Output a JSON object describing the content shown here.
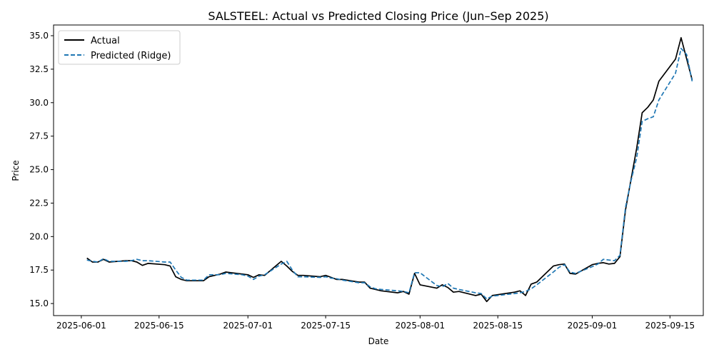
{
  "chart_data": {
    "type": "line",
    "title": "SALSTEEL: Actual vs Predicted Closing Price (Jun–Sep 2025)",
    "xlabel": "Date",
    "ylabel": "Price",
    "x_ticks": [
      "2025-06-01",
      "2025-06-15",
      "2025-07-01",
      "2025-07-15",
      "2025-08-01",
      "2025-08-15",
      "2025-09-01",
      "2025-09-15"
    ],
    "y_ticks": [
      "15.0",
      "17.5",
      "20.0",
      "22.5",
      "25.0",
      "27.5",
      "30.0",
      "32.5",
      "35.0"
    ],
    "xlim": [
      "2025-05-27",
      "2025-09-21"
    ],
    "ylim": [
      14.1,
      35.8
    ],
    "grid": false,
    "legend_position": "top-left",
    "series": [
      {
        "name": "Actual",
        "color": "#000000",
        "style": "solid",
        "points": [
          [
            "2025-06-02",
            18.4
          ],
          [
            "2025-06-03",
            18.1
          ],
          [
            "2025-06-04",
            18.1
          ],
          [
            "2025-06-05",
            18.3
          ],
          [
            "2025-06-06",
            18.1
          ],
          [
            "2025-06-09",
            18.2
          ],
          [
            "2025-06-10",
            18.2
          ],
          [
            "2025-06-11",
            18.1
          ],
          [
            "2025-06-12",
            17.85
          ],
          [
            "2025-06-13",
            18.0
          ],
          [
            "2025-06-16",
            17.9
          ],
          [
            "2025-06-17",
            17.8
          ],
          [
            "2025-06-18",
            17.0
          ],
          [
            "2025-06-19",
            16.8
          ],
          [
            "2025-06-20",
            16.7
          ],
          [
            "2025-06-23",
            16.7
          ],
          [
            "2025-06-24",
            17.0
          ],
          [
            "2025-06-25",
            17.1
          ],
          [
            "2025-06-26",
            17.2
          ],
          [
            "2025-06-27",
            17.35
          ],
          [
            "2025-06-30",
            17.2
          ],
          [
            "2025-07-01",
            17.15
          ],
          [
            "2025-07-02",
            16.95
          ],
          [
            "2025-07-03",
            17.15
          ],
          [
            "2025-07-04",
            17.1
          ],
          [
            "2025-07-07",
            18.15
          ],
          [
            "2025-07-08",
            17.8
          ],
          [
            "2025-07-09",
            17.4
          ],
          [
            "2025-07-10",
            17.1
          ],
          [
            "2025-07-11",
            17.1
          ],
          [
            "2025-07-14",
            17.0
          ],
          [
            "2025-07-15",
            17.1
          ],
          [
            "2025-07-16",
            16.95
          ],
          [
            "2025-07-17",
            16.8
          ],
          [
            "2025-07-18",
            16.8
          ],
          [
            "2025-07-21",
            16.6
          ],
          [
            "2025-07-22",
            16.6
          ],
          [
            "2025-07-23",
            16.15
          ],
          [
            "2025-07-24",
            16.05
          ],
          [
            "2025-07-25",
            15.95
          ],
          [
            "2025-07-28",
            15.8
          ],
          [
            "2025-07-29",
            15.9
          ],
          [
            "2025-07-30",
            15.7
          ],
          [
            "2025-07-31",
            17.25
          ],
          [
            "2025-08-01",
            16.4
          ],
          [
            "2025-08-04",
            16.15
          ],
          [
            "2025-08-05",
            16.4
          ],
          [
            "2025-08-06",
            16.2
          ],
          [
            "2025-08-07",
            15.85
          ],
          [
            "2025-08-08",
            15.9
          ],
          [
            "2025-08-11",
            15.6
          ],
          [
            "2025-08-12",
            15.7
          ],
          [
            "2025-08-13",
            15.15
          ],
          [
            "2025-08-14",
            15.6
          ],
          [
            "2025-08-18",
            15.85
          ],
          [
            "2025-08-19",
            15.95
          ],
          [
            "2025-08-20",
            15.6
          ],
          [
            "2025-08-21",
            16.45
          ],
          [
            "2025-08-22",
            16.6
          ],
          [
            "2025-08-25",
            17.8
          ],
          [
            "2025-08-26",
            17.9
          ],
          [
            "2025-08-27",
            17.95
          ],
          [
            "2025-08-28",
            17.25
          ],
          [
            "2025-08-29",
            17.2
          ],
          [
            "2025-09-01",
            17.9
          ],
          [
            "2025-09-02",
            18.0
          ],
          [
            "2025-09-03",
            18.05
          ],
          [
            "2025-09-04",
            17.95
          ],
          [
            "2025-09-05",
            18.0
          ],
          [
            "2025-09-06",
            18.5
          ],
          [
            "2025-09-07",
            22.0
          ],
          [
            "2025-09-08",
            24.3
          ],
          [
            "2025-09-09",
            26.6
          ],
          [
            "2025-09-10",
            29.25
          ],
          [
            "2025-09-11",
            29.65
          ],
          [
            "2025-09-12",
            30.2
          ],
          [
            "2025-09-13",
            31.6
          ],
          [
            "2025-09-16",
            33.25
          ],
          [
            "2025-09-17",
            34.85
          ],
          [
            "2025-09-19",
            31.7
          ]
        ]
      },
      {
        "name": "Predicted (Ridge)",
        "color": "#1f77b4",
        "style": "dashed",
        "points": [
          [
            "2025-06-02",
            18.25
          ],
          [
            "2025-06-03",
            18.15
          ],
          [
            "2025-06-04",
            18.1
          ],
          [
            "2025-06-05",
            18.35
          ],
          [
            "2025-06-06",
            18.15
          ],
          [
            "2025-06-09",
            18.15
          ],
          [
            "2025-06-10",
            18.2
          ],
          [
            "2025-06-11",
            18.3
          ],
          [
            "2025-06-12",
            18.2
          ],
          [
            "2025-06-13",
            18.2
          ],
          [
            "2025-06-16",
            18.1
          ],
          [
            "2025-06-17",
            18.1
          ],
          [
            "2025-06-18",
            17.5
          ],
          [
            "2025-06-19",
            16.95
          ],
          [
            "2025-06-20",
            16.75
          ],
          [
            "2025-06-23",
            16.75
          ],
          [
            "2025-06-24",
            17.15
          ],
          [
            "2025-06-25",
            17.15
          ],
          [
            "2025-06-26",
            17.15
          ],
          [
            "2025-06-27",
            17.25
          ],
          [
            "2025-06-30",
            17.15
          ],
          [
            "2025-07-01",
            17.05
          ],
          [
            "2025-07-02",
            16.8
          ],
          [
            "2025-07-03",
            17.05
          ],
          [
            "2025-07-04",
            17.15
          ],
          [
            "2025-07-07",
            17.95
          ],
          [
            "2025-07-08",
            18.15
          ],
          [
            "2025-07-09",
            17.5
          ],
          [
            "2025-07-10",
            17.0
          ],
          [
            "2025-07-11",
            17.0
          ],
          [
            "2025-07-14",
            16.95
          ],
          [
            "2025-07-15",
            17.0
          ],
          [
            "2025-07-16",
            16.9
          ],
          [
            "2025-07-17",
            16.85
          ],
          [
            "2025-07-18",
            16.75
          ],
          [
            "2025-07-21",
            16.55
          ],
          [
            "2025-07-22",
            16.55
          ],
          [
            "2025-07-23",
            16.25
          ],
          [
            "2025-07-24",
            16.1
          ],
          [
            "2025-07-25",
            16.05
          ],
          [
            "2025-07-28",
            15.95
          ],
          [
            "2025-07-29",
            15.9
          ],
          [
            "2025-07-30",
            15.8
          ],
          [
            "2025-07-31",
            17.3
          ],
          [
            "2025-08-01",
            17.3
          ],
          [
            "2025-08-04",
            16.35
          ],
          [
            "2025-08-05",
            16.25
          ],
          [
            "2025-08-06",
            16.5
          ],
          [
            "2025-08-07",
            16.15
          ],
          [
            "2025-08-08",
            16.05
          ],
          [
            "2025-08-11",
            15.8
          ],
          [
            "2025-08-12",
            15.75
          ],
          [
            "2025-08-13",
            15.35
          ],
          [
            "2025-08-14",
            15.55
          ],
          [
            "2025-08-18",
            15.75
          ],
          [
            "2025-08-19",
            15.8
          ],
          [
            "2025-08-20",
            15.9
          ],
          [
            "2025-08-21",
            16.1
          ],
          [
            "2025-08-22",
            16.4
          ],
          [
            "2025-08-25",
            17.35
          ],
          [
            "2025-08-26",
            17.7
          ],
          [
            "2025-08-27",
            17.9
          ],
          [
            "2025-08-28",
            17.35
          ],
          [
            "2025-08-29",
            17.25
          ],
          [
            "2025-09-01",
            17.75
          ],
          [
            "2025-09-02",
            17.95
          ],
          [
            "2025-09-03",
            18.3
          ],
          [
            "2025-09-04",
            18.25
          ],
          [
            "2025-09-05",
            18.2
          ],
          [
            "2025-09-06",
            18.6
          ],
          [
            "2025-09-07",
            22.2
          ],
          [
            "2025-09-08",
            24.2
          ],
          [
            "2025-09-09",
            25.9
          ],
          [
            "2025-09-10",
            28.6
          ],
          [
            "2025-09-11",
            28.8
          ],
          [
            "2025-09-12",
            28.95
          ],
          [
            "2025-09-13",
            30.2
          ],
          [
            "2025-09-16",
            32.2
          ],
          [
            "2025-09-17",
            34.05
          ],
          [
            "2025-09-18",
            33.6
          ],
          [
            "2025-09-19",
            31.6
          ]
        ]
      }
    ]
  }
}
